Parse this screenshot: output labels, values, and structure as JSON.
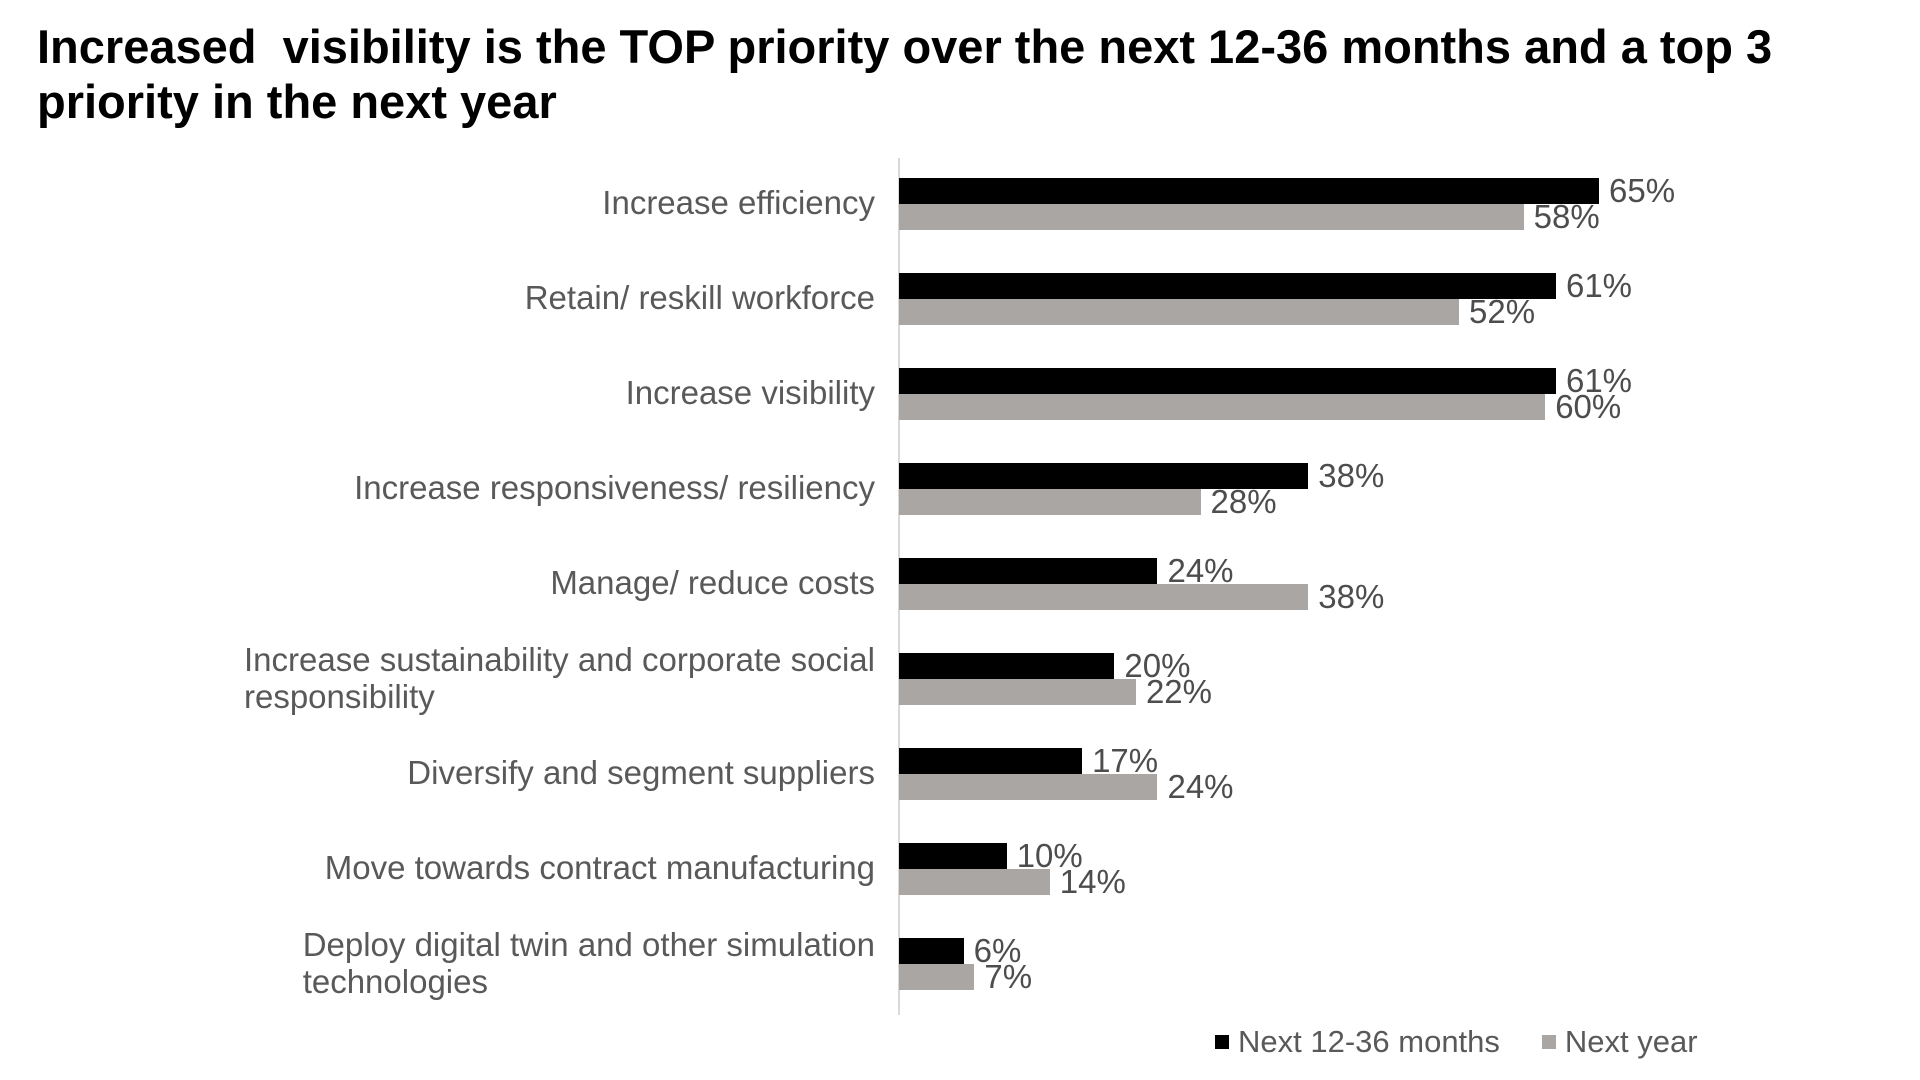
{
  "title": "Increased  visibility is the TOP priority over the next 12-36 months and a top 3 priority in the next year",
  "colors": {
    "title_text": "#000000",
    "category_text": "#595959",
    "value_text": "#4d4d4d",
    "axis_line": "#d9d9d9",
    "series_black": "#000000",
    "series_gray": "#a9a6a4"
  },
  "chart_data": {
    "type": "bar",
    "orientation": "horizontal",
    "title": "Increased  visibility is the TOP priority over the next 12-36 months and a top 3 priority in the next year",
    "categories": [
      "Increase efficiency",
      "Retain/ reskill workforce",
      "Increase visibility",
      "Increase responsiveness/ resiliency",
      "Manage/ reduce costs",
      "Increase sustainability and corporate social\nresponsibility",
      "Diversify and segment suppliers",
      "Move towards contract manufacturing",
      "Deploy digital twin and other simulation\ntechnologies"
    ],
    "series": [
      {
        "name": "Next 12-36 months",
        "color": "#000000",
        "values": [
          65,
          61,
          61,
          38,
          24,
          20,
          17,
          10,
          6
        ]
      },
      {
        "name": "Next year",
        "color": "#a9a6a4",
        "values": [
          58,
          52,
          60,
          28,
          38,
          22,
          24,
          14,
          7
        ]
      }
    ],
    "value_suffix": "%",
    "data_labels": true,
    "grid": false,
    "value_axis_visible": false,
    "legend_position": "bottom-right",
    "xlim": [
      0,
      100
    ]
  }
}
